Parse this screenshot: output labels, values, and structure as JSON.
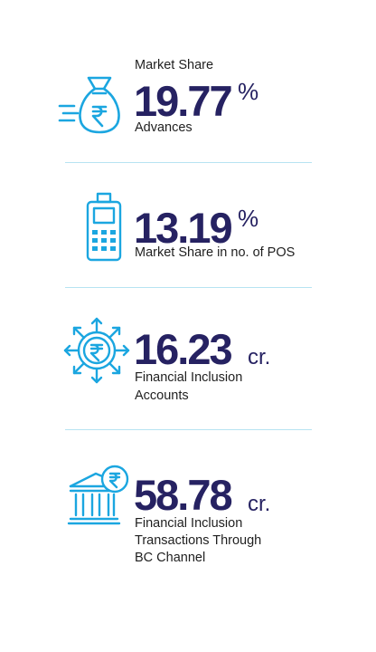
{
  "colors": {
    "value": "#262262",
    "icon": "#1ba6e0",
    "label": "#1f1f1f",
    "divider": "#b7e3f2",
    "background": "#ffffff"
  },
  "stats": [
    {
      "icon": "money-bag-rupee-icon",
      "label_top": "Market Share",
      "value": "19.77",
      "unit": "%",
      "label_lines": [
        "Advances"
      ]
    },
    {
      "icon": "pos-terminal-icon",
      "value": "13.19",
      "unit": "%",
      "label_lines": [
        "Market Share in no. of POS"
      ]
    },
    {
      "icon": "rupee-coin-arrows-icon",
      "value": "16.23",
      "unit": "cr.",
      "label_lines": [
        "Financial Inclusion",
        "Accounts"
      ]
    },
    {
      "icon": "bank-rupee-icon",
      "value": "58.78",
      "unit": "cr.",
      "label_lines": [
        "Financial Inclusion",
        "Transactions Through",
        "BC Channel"
      ]
    }
  ]
}
